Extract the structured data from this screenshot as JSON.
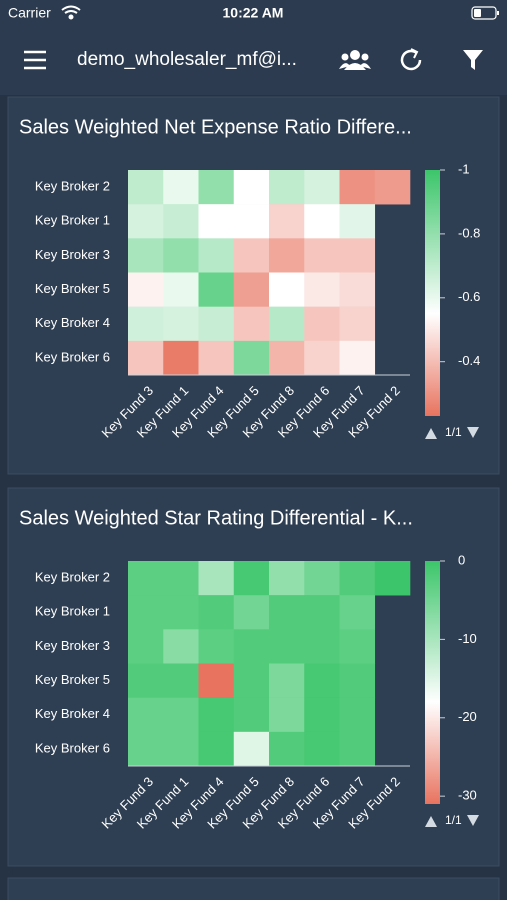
{
  "status_bar": {
    "carrier": "Carrier",
    "time": "10:22 AM"
  },
  "nav": {
    "title": "demo_wholesaler_mf@i..."
  },
  "chart_data": [
    {
      "type": "heatmap",
      "title": "Sales Weighted Net Expense Ratio Differe...",
      "x": [
        "Key Fund 3",
        "Key Fund 1",
        "Key Fund 4",
        "Key Fund 5",
        "Key Fund 8",
        "Key Fund 6",
        "Key Fund 7",
        "Key Fund 2"
      ],
      "y": [
        "Key Broker 2",
        "Key Broker 1",
        "Key Broker 3",
        "Key Broker 5",
        "Key Broker 4",
        "Key Broker 6"
      ],
      "values": [
        [
          -0.7,
          -0.6,
          -0.8,
          -0.55,
          -0.7,
          -0.65,
          -0.3,
          -0.32
        ],
        [
          -0.65,
          -0.68,
          -0.55,
          -0.55,
          -0.45,
          -0.55,
          -0.62,
          null
        ],
        [
          -0.75,
          -0.8,
          -0.72,
          -0.42,
          -0.35,
          -0.42,
          -0.42,
          null
        ],
        [
          -0.52,
          -0.6,
          -0.9,
          -0.33,
          -0.55,
          -0.5,
          -0.47,
          null
        ],
        [
          -0.66,
          -0.65,
          -0.68,
          -0.42,
          -0.72,
          -0.42,
          -0.45,
          null
        ],
        [
          -0.42,
          -0.25,
          -0.42,
          -0.85,
          -0.38,
          -0.45,
          -0.52,
          null
        ]
      ],
      "zlim": [
        -1,
        -0.23
      ],
      "zticks": [
        -1,
        -0.8,
        -0.6,
        -0.4
      ],
      "colorscale": [
        [
          -1,
          "#3cc56a"
        ],
        [
          -0.55,
          "#ffffff"
        ],
        [
          -0.23,
          "#e8735f"
        ]
      ],
      "colorbar_reversed": true,
      "pager": "1/1"
    },
    {
      "type": "heatmap",
      "title": "Sales Weighted Star Rating Differential - K...",
      "x": [
        "Key Fund 3",
        "Key Fund 1",
        "Key Fund 4",
        "Key Fund 5",
        "Key Fund 8",
        "Key Fund 6",
        "Key Fund 7",
        "Key Fund 2"
      ],
      "y": [
        "Key Broker 2",
        "Key Broker 1",
        "Key Broker 3",
        "Key Broker 5",
        "Key Broker 4",
        "Key Broker 6"
      ],
      "values": [
        [
          -3,
          -3,
          -10,
          -1,
          -8,
          -5,
          -2,
          0
        ],
        [
          -3,
          -3,
          -2,
          -5,
          -2,
          -2,
          -4,
          null
        ],
        [
          -3,
          -7,
          -3,
          -2,
          -2,
          -2,
          -3,
          null
        ],
        [
          -2,
          -2,
          -31,
          -2,
          -6,
          -1,
          -2,
          null
        ],
        [
          -4,
          -4,
          -1,
          -2,
          -6,
          -1,
          -2,
          null
        ],
        [
          -4,
          -4,
          -1,
          -15,
          -2,
          -1,
          -2,
          null
        ]
      ],
      "zlim": [
        -31,
        0
      ],
      "zticks": [
        0,
        -10,
        -20,
        -30
      ],
      "colorscale": [
        [
          -31,
          "#e8735f"
        ],
        [
          -18,
          "#ffffff"
        ],
        [
          0,
          "#3cc56a"
        ]
      ],
      "colorbar_reversed": false,
      "pager": "1/1"
    }
  ]
}
